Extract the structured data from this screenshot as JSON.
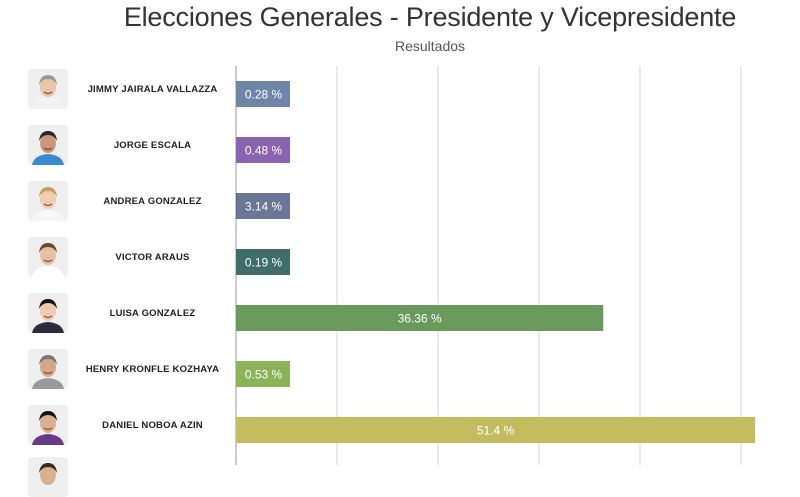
{
  "chart_data": {
    "type": "bar",
    "orientation": "horizontal",
    "title": "Elecciones Generales - Presidente y Vicepresidente",
    "subtitle": "Resultados",
    "xlim": [
      0,
      52
    ],
    "grid": true,
    "categories": [
      "JIMMY JAIRALA VALLAZZA",
      "JORGE ESCALA",
      "ANDREA GONZALEZ",
      "VICTOR ARAUS",
      "LUISA GONZALEZ",
      "HENRY KRONFLE KOZHAYA",
      "DANIEL NOBOA AZIN"
    ],
    "values": [
      0.28,
      0.48,
      3.14,
      0.19,
      36.36,
      0.53,
      51.4
    ],
    "value_labels": [
      "0.28 %",
      "0.48 %",
      "3.14 %",
      "0.19 %",
      "36.36 %",
      "0.53 %",
      "51.4 %"
    ],
    "colors": [
      "#6f86a8",
      "#8a64b0",
      "#5a6688",
      "#3e6d6b",
      "#6a9a5c",
      "#8ab35a",
      "#c3bd60"
    ],
    "label_box_colors": [
      "#6f86a8",
      "#8a64b0",
      "#6a7797",
      "#3e6d6b",
      "#6a9a5c",
      "#8ab35a",
      "#c3bd60"
    ]
  },
  "candidates": [
    {
      "name": "JIMMY JAIRALA VALLAZZA",
      "photo_icon": "candidate-photo-icon"
    },
    {
      "name": "JORGE ESCALA",
      "photo_icon": "candidate-photo-icon"
    },
    {
      "name": "ANDREA GONZALEZ",
      "photo_icon": "candidate-photo-icon"
    },
    {
      "name": "VICTOR ARAUS",
      "photo_icon": "candidate-photo-icon"
    },
    {
      "name": "LUISA GONZALEZ",
      "photo_icon": "candidate-photo-icon"
    },
    {
      "name": "HENRY KRONFLE KOZHAYA",
      "photo_icon": "candidate-photo-icon"
    },
    {
      "name": "DANIEL NOBOA AZIN",
      "photo_icon": "candidate-photo-icon"
    }
  ]
}
